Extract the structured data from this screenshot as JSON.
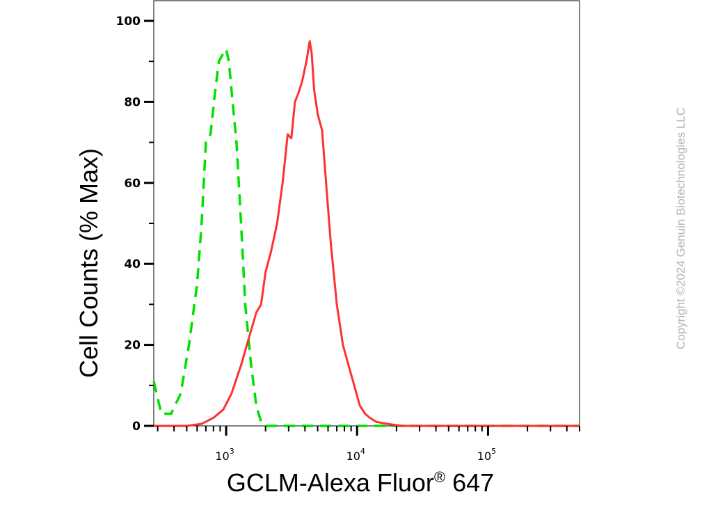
{
  "copyright": "Copyright ©2024 Genuin Biotechnologies LLC",
  "chart_data": {
    "type": "line",
    "title": "",
    "xlabel": "GCLM-Alexa Fluor",
    "xlabel_superscript": "®",
    "xlabel_suffix": " 647",
    "ylabel": "Cell Counts (% Max)",
    "xscale": "log",
    "xlim": [
      280,
      500000
    ],
    "ylim": [
      0,
      100
    ],
    "yticks": [
      0,
      20,
      40,
      60,
      80,
      100
    ],
    "xticks": [
      {
        "value": 1000,
        "base": "10",
        "exp": "3"
      },
      {
        "value": 10000,
        "base": "10",
        "exp": "4"
      },
      {
        "value": 100000,
        "base": "10",
        "exp": "5"
      }
    ],
    "grid": false,
    "legend": "none",
    "series": [
      {
        "color": "#00e000",
        "style": "dashed",
        "x": [
          280,
          320,
          380,
          450,
          520,
          600,
          650,
          700,
          760,
          820,
          880,
          950,
          1000,
          1050,
          1120,
          1200,
          1300,
          1400,
          1550,
          1700,
          1850,
          2000,
          2300,
          3000,
          5000,
          10000,
          30000,
          100000,
          500000
        ],
        "y": [
          11,
          3,
          3,
          8,
          20,
          35,
          50,
          70,
          72,
          82,
          90,
          92,
          93,
          90,
          80,
          70,
          50,
          30,
          15,
          5,
          1,
          0,
          0,
          0,
          0,
          0,
          0,
          0,
          0
        ]
      },
      {
        "color": "#ff3030",
        "style": "solid",
        "x": [
          280,
          500,
          650,
          800,
          950,
          1100,
          1300,
          1500,
          1700,
          1850,
          2000,
          2200,
          2450,
          2700,
          2950,
          3150,
          3350,
          3550,
          3800,
          4100,
          4350,
          4500,
          4700,
          5000,
          5400,
          5800,
          6300,
          7000,
          7800,
          8600,
          9500,
          10500,
          11500,
          12500,
          14000,
          17000,
          22000,
          30000,
          50000,
          100000,
          500000
        ],
        "y": [
          0,
          0,
          0.5,
          2,
          4,
          8,
          15,
          22,
          28,
          30,
          38,
          43,
          50,
          60,
          72,
          71,
          80,
          82,
          85,
          90,
          95,
          92,
          83,
          77,
          73,
          60,
          45,
          30,
          20,
          15,
          10,
          5,
          3,
          2,
          1,
          0.5,
          0,
          0,
          0,
          0,
          0
        ]
      }
    ]
  }
}
